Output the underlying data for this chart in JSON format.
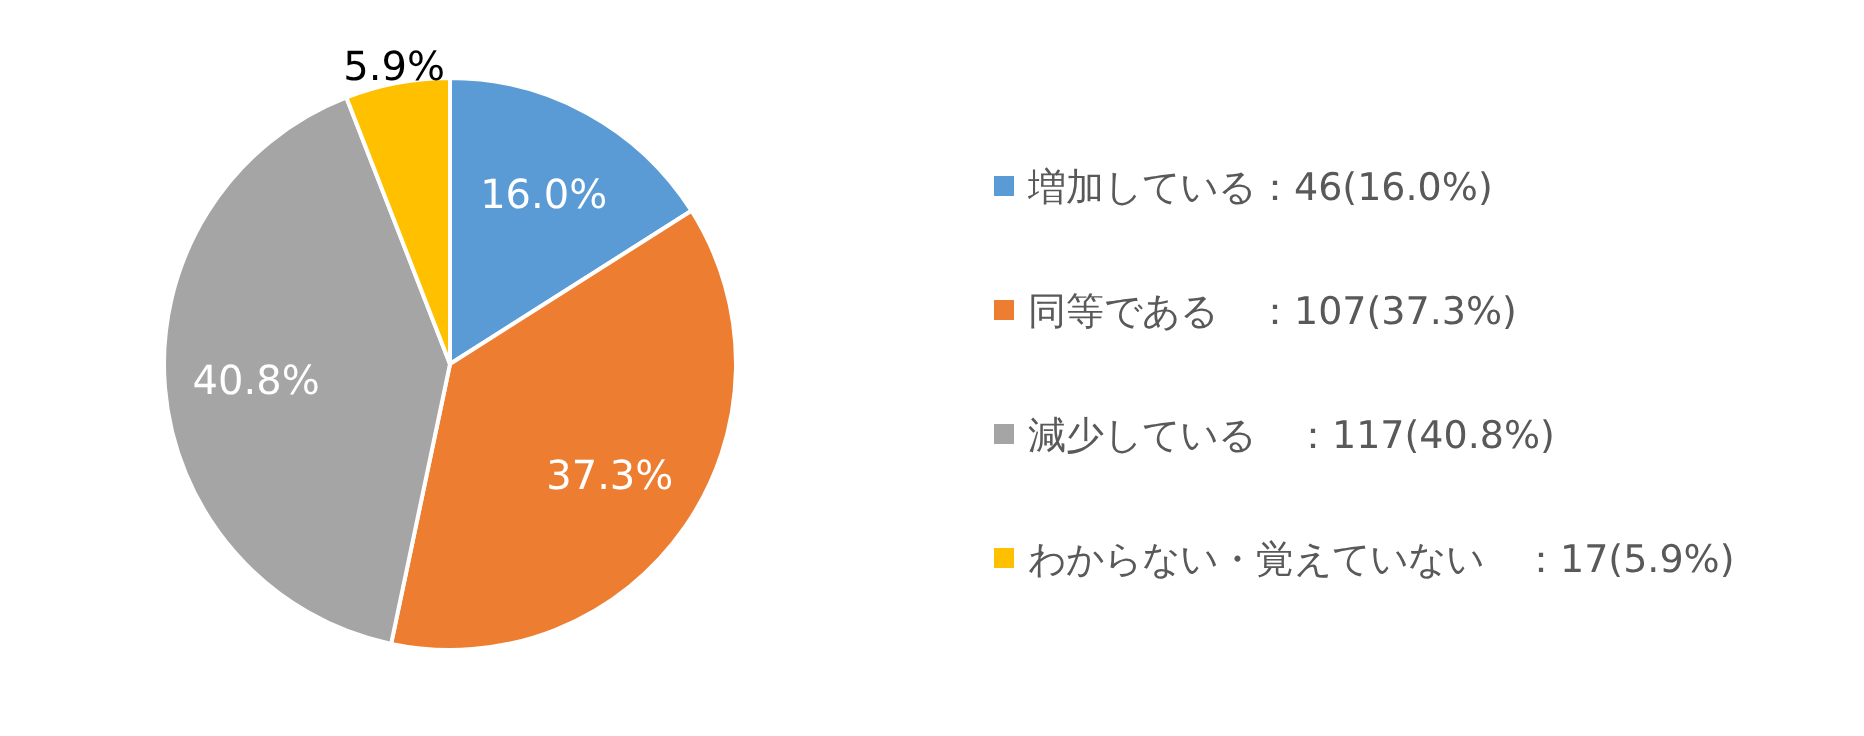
{
  "chart_data": {
    "type": "pie",
    "categories": [
      "増加している：46(16.0%)",
      "同等である　：107(37.3%)",
      "減少している　：117(40.8%)",
      "わからない・覚えていない　：17(5.9%)"
    ],
    "values": [
      16.0,
      37.3,
      40.8,
      5.9
    ],
    "value_labels": [
      "16.0%",
      "37.3%",
      "40.8%",
      "5.9%"
    ],
    "colors": [
      "#5b9bd5",
      "#ed7d31",
      "#a5a5a5",
      "#ffc000"
    ],
    "legend": "right"
  }
}
